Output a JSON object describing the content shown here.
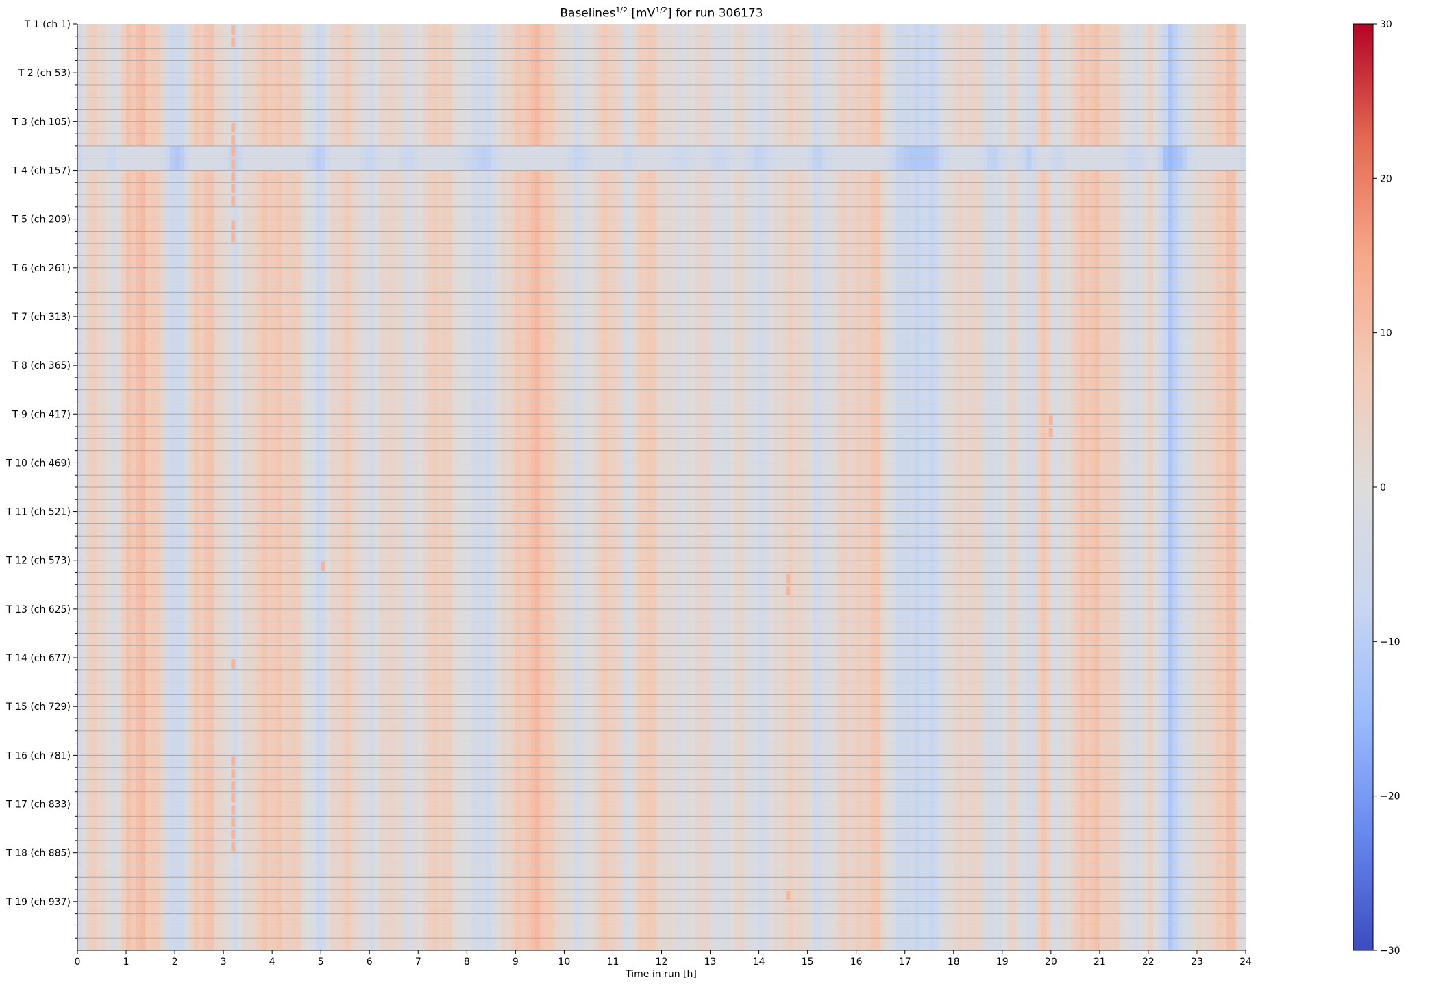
{
  "chart_data": {
    "type": "heatmap",
    "title_main": "Baselines",
    "title_exp1": "1/2",
    "title_unit_open": " [mV",
    "title_exp2": "1/2",
    "title_rest": "] for run 306173",
    "xlabel": "Time in run [h]",
    "xlim": [
      0,
      24
    ],
    "x_ticks": [
      "0",
      "1",
      "2",
      "3",
      "4",
      "5",
      "6",
      "7",
      "8",
      "9",
      "10",
      "11",
      "12",
      "13",
      "14",
      "15",
      "16",
      "17",
      "18",
      "19",
      "20",
      "21",
      "22",
      "23",
      "24"
    ],
    "y_rows": 76,
    "y_tick_labels": [
      "T 1 (ch 1)",
      "T 2 (ch 53)",
      "T 3 (ch 105)",
      "T 4 (ch 157)",
      "T 5 (ch 209)",
      "T 6 (ch 261)",
      "T 7 (ch 313)",
      "T 8 (ch 365)",
      "T 9 (ch 417)",
      "T 10 (ch 469)",
      "T 11 (ch 521)",
      "T 12 (ch 573)",
      "T 13 (ch 625)",
      "T 14 (ch 677)",
      "T 15 (ch 729)",
      "T 16 (ch 781)",
      "T 17 (ch 833)",
      "T 18 (ch 885)",
      "T 19 (ch 937)"
    ],
    "colorbar": {
      "colormap": "coolwarm",
      "range": [
        -30,
        30
      ],
      "ticks": [
        "30",
        "20",
        "10",
        "0",
        "−10",
        "−20",
        "−30"
      ]
    },
    "time_bins": 240,
    "column_profile_keyframes": [
      {
        "t": 0.0,
        "v": -4
      },
      {
        "t": 0.2,
        "v": 4
      },
      {
        "t": 0.5,
        "v": 5
      },
      {
        "t": 0.7,
        "v": -3
      },
      {
        "t": 1.0,
        "v": 7
      },
      {
        "t": 1.3,
        "v": 10
      },
      {
        "t": 1.6,
        "v": 8
      },
      {
        "t": 1.9,
        "v": -5
      },
      {
        "t": 2.1,
        "v": -7
      },
      {
        "t": 2.4,
        "v": 6
      },
      {
        "t": 2.7,
        "v": 9
      },
      {
        "t": 3.0,
        "v": 3
      },
      {
        "t": 3.2,
        "v": -5
      },
      {
        "t": 3.5,
        "v": 4
      },
      {
        "t": 4.0,
        "v": 8
      },
      {
        "t": 4.5,
        "v": 6
      },
      {
        "t": 4.8,
        "v": -2
      },
      {
        "t": 5.0,
        "v": -6
      },
      {
        "t": 5.3,
        "v": 4
      },
      {
        "t": 5.6,
        "v": 7
      },
      {
        "t": 6.0,
        "v": -4
      },
      {
        "t": 6.4,
        "v": 6
      },
      {
        "t": 6.8,
        "v": -3
      },
      {
        "t": 7.2,
        "v": 5
      },
      {
        "t": 7.6,
        "v": 6
      },
      {
        "t": 8.0,
        "v": -2
      },
      {
        "t": 8.4,
        "v": -5
      },
      {
        "t": 8.8,
        "v": 3
      },
      {
        "t": 9.1,
        "v": 8
      },
      {
        "t": 9.5,
        "v": 10
      },
      {
        "t": 9.9,
        "v": 4
      },
      {
        "t": 10.3,
        "v": -4
      },
      {
        "t": 10.7,
        "v": 5
      },
      {
        "t": 11.0,
        "v": 7
      },
      {
        "t": 11.3,
        "v": -3
      },
      {
        "t": 11.7,
        "v": 9
      },
      {
        "t": 12.0,
        "v": 3
      },
      {
        "t": 12.4,
        "v": -2
      },
      {
        "t": 12.8,
        "v": 4
      },
      {
        "t": 13.2,
        "v": -3
      },
      {
        "t": 13.6,
        "v": 3
      },
      {
        "t": 14.0,
        "v": -4
      },
      {
        "t": 14.4,
        "v": 2
      },
      {
        "t": 14.8,
        "v": 6
      },
      {
        "t": 15.2,
        "v": -5
      },
      {
        "t": 15.6,
        "v": 3
      },
      {
        "t": 16.0,
        "v": 5
      },
      {
        "t": 16.4,
        "v": 8
      },
      {
        "t": 16.8,
        "v": -4
      },
      {
        "t": 17.2,
        "v": -7
      },
      {
        "t": 17.6,
        "v": -6
      },
      {
        "t": 18.0,
        "v": 3
      },
      {
        "t": 18.4,
        "v": 5
      },
      {
        "t": 18.8,
        "v": -5
      },
      {
        "t": 19.2,
        "v": 4
      },
      {
        "t": 19.6,
        "v": -6
      },
      {
        "t": 19.8,
        "v": 10
      },
      {
        "t": 20.1,
        "v": -3
      },
      {
        "t": 20.5,
        "v": 6
      },
      {
        "t": 20.9,
        "v": 9
      },
      {
        "t": 21.3,
        "v": 5
      },
      {
        "t": 21.7,
        "v": -3
      },
      {
        "t": 22.1,
        "v": 4
      },
      {
        "t": 22.4,
        "v": -11
      },
      {
        "t": 22.7,
        "v": -6
      },
      {
        "t": 23.0,
        "v": 3
      },
      {
        "t": 23.4,
        "v": 5
      },
      {
        "t": 23.7,
        "v": 11
      },
      {
        "t": 24.0,
        "v": -3
      }
    ],
    "blue_band": {
      "row_from": 10,
      "row_to": 11,
      "offset": -5
    },
    "hotspots": [
      {
        "x": 3.2,
        "rows": [
          0,
          1,
          8,
          9,
          10,
          11,
          12,
          13,
          14,
          16,
          17,
          52,
          60,
          61,
          62,
          63,
          64,
          65,
          66,
          67
        ]
      },
      {
        "x": 20.0,
        "rows": [
          32,
          33
        ]
      },
      {
        "x": 5.05,
        "rows": [
          44
        ]
      },
      {
        "x": 14.6,
        "rows": [
          45,
          46,
          71
        ]
      }
    ]
  }
}
